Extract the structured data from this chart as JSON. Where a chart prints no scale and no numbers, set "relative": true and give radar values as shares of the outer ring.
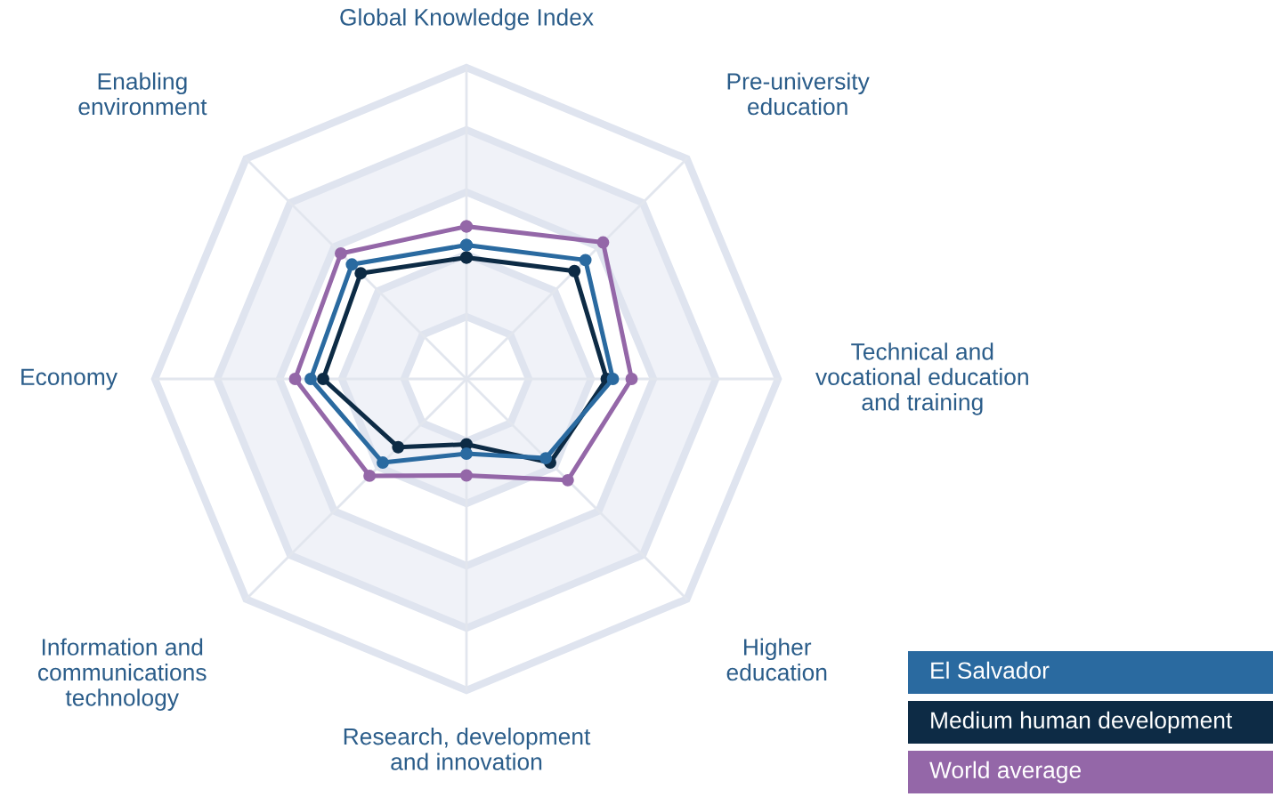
{
  "chart_data": {
    "type": "radar",
    "relative": true,
    "grid": true,
    "legend": "bottom right",
    "marker": "circle",
    "categories": [
      "Global Knowledge Index",
      "Pre-university\neducation",
      "Technical and\nvocational education\nand training",
      "Higher\neducation",
      "Research, development\nand innovation",
      "Information and\ncommunications\ntechnology",
      "Economy",
      "Enabling\nenvironment"
    ],
    "series": [
      {
        "name": "El Salvador",
        "color": "#2a6aa0",
        "values": [
          0.43,
          0.54,
          0.47,
          0.36,
          0.24,
          0.38,
          0.5,
          0.52
        ]
      },
      {
        "name": "Medium human development",
        "color": "#0d2b45",
        "values": [
          0.39,
          0.49,
          0.45,
          0.38,
          0.21,
          0.31,
          0.46,
          0.48
        ]
      },
      {
        "name": "World average",
        "color": "#9467a8",
        "values": [
          0.49,
          0.62,
          0.53,
          0.46,
          0.31,
          0.44,
          0.55,
          0.57
        ]
      }
    ]
  }
}
